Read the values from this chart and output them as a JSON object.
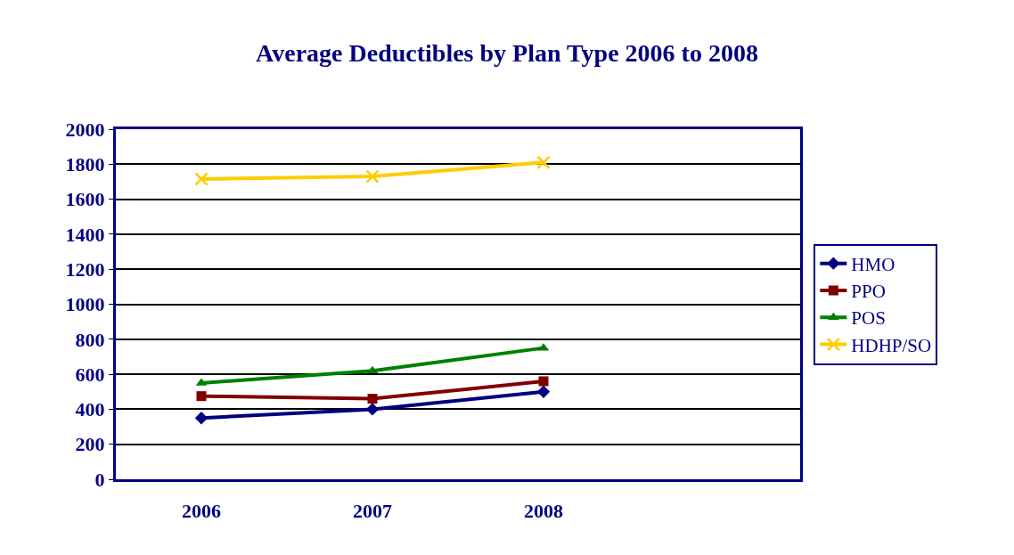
{
  "chart_data": {
    "type": "line",
    "title": "Average Deductibles by Plan Type 2006 to 2008",
    "categories": [
      "2006",
      "2007",
      "2008",
      null
    ],
    "series": [
      {
        "name": "HMO",
        "color": "#000080",
        "marker": "diamond",
        "values": [
          350,
          400,
          500,
          null
        ]
      },
      {
        "name": "PPO",
        "color": "#800000",
        "marker": "square",
        "values": [
          475,
          460,
          560,
          null
        ]
      },
      {
        "name": "POS",
        "color": "#008000",
        "marker": "triangle",
        "values": [
          550,
          620,
          750,
          null
        ]
      },
      {
        "name": "HDHP/SO",
        "color": "#ffcc00",
        "marker": "cross",
        "values": [
          1715,
          1730,
          1810,
          null
        ]
      }
    ],
    "ylim": [
      0,
      2000
    ],
    "yticks": [
      0,
      200,
      400,
      600,
      800,
      1000,
      1200,
      1400,
      1600,
      1800,
      2000
    ],
    "grid": "y",
    "legend": "right",
    "line_style": "solid"
  }
}
